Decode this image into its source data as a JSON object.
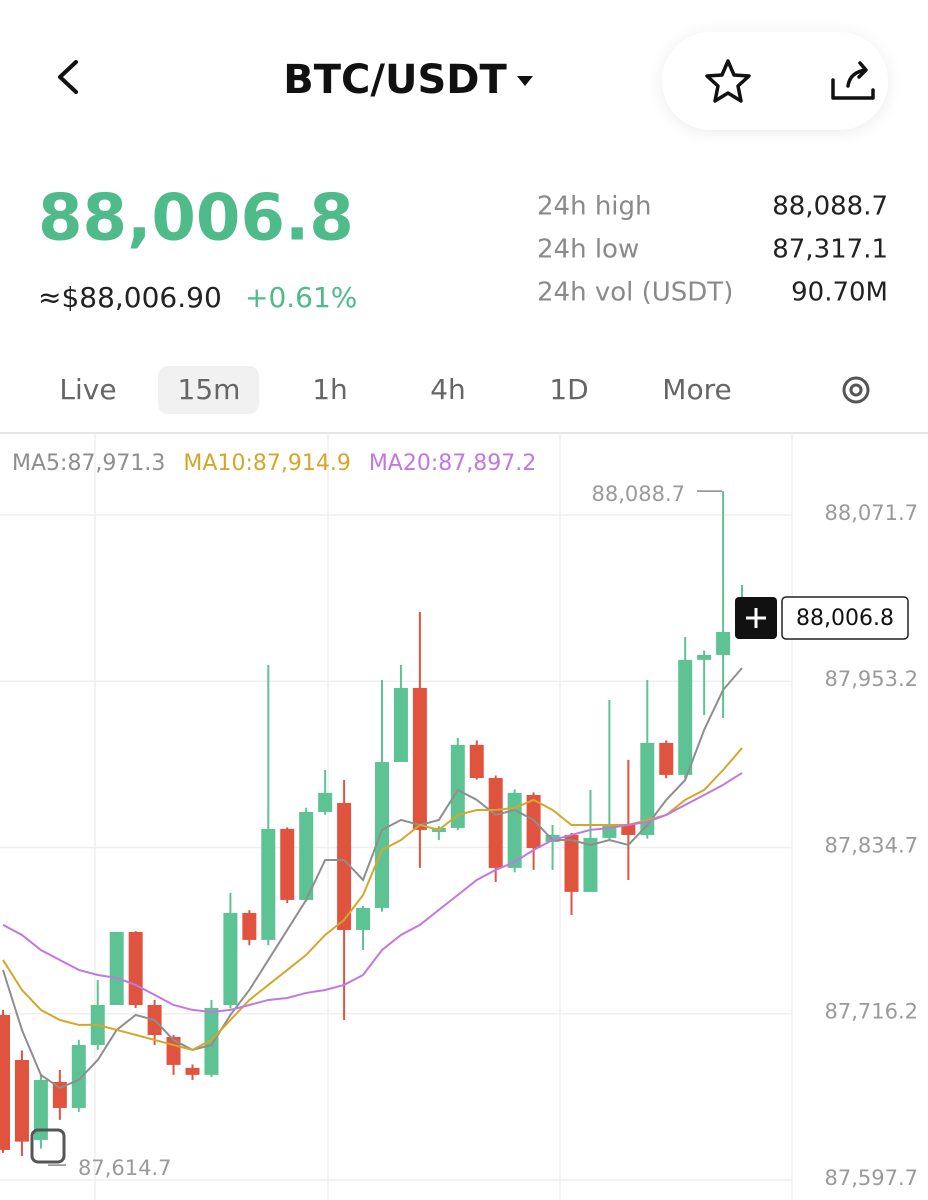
{
  "header": {
    "title": "BTC/USDT"
  },
  "ticker": {
    "price": "88,006.8",
    "usd_price": "≈$88,006.90",
    "change": "+0.61%",
    "stats": [
      {
        "label": "24h high",
        "value": "88,088.7"
      },
      {
        "label": "24h low",
        "value": "87,317.1"
      },
      {
        "label": "24h vol (USDT)",
        "value": "90.70M"
      }
    ]
  },
  "tabs": {
    "items": [
      "Live",
      "15m",
      "1h",
      "4h",
      "1D",
      "More"
    ],
    "selected": 1
  },
  "chart_data": {
    "type": "candlestick",
    "up_color": "#5ec394",
    "down_color": "#e0533f",
    "open": [
      87715.3,
      87683.2,
      87626.2,
      87667.6,
      87649.0,
      87693.9,
      87722.4,
      87774.5,
      87722.4,
      87699.6,
      87677.5,
      87672.6,
      87722.4,
      87788.0,
      87768.8,
      87847.9,
      87797.3,
      87860.0,
      87866.4,
      87775.9,
      87791.6,
      87895.6,
      87948.4,
      87845.7,
      87848.6,
      87907.8,
      87884.2,
      87820.1,
      87872.1,
      87838.6,
      87843.6,
      87803.0,
      87841.5,
      87850.7,
      87843.6,
      87909.2,
      87886.4,
      87968.4,
      87971.9,
      87988.3
    ],
    "high": [
      87718.9,
      87690.0,
      87672.6,
      87676.1,
      87697.5,
      87740.2,
      87774.5,
      87775.0,
      87726.0,
      87701.0,
      87680.0,
      87726.0,
      87802.3,
      87790.0,
      87964.8,
      87849.0,
      87863.0,
      87889.9,
      87882.8,
      87793.0,
      87954.1,
      87964.8,
      88002.6,
      87850.0,
      87912.8,
      87911.0,
      87886.0,
      87876.0,
      87874.0,
      87850.7,
      87845.0,
      87875.7,
      87939.8,
      87897.1,
      87954.1,
      87911.0,
      87984.7,
      87975.0,
      88088.7,
      88021.8
    ],
    "low": [
      87617.0,
      87614.7,
      87620.0,
      87640.5,
      87646.2,
      87690.4,
      87722.4,
      87720.3,
      87693.9,
      87672.6,
      87669.0,
      87671.0,
      87720.0,
      87765.0,
      87765.0,
      87795.0,
      87796.0,
      87858.0,
      87711.7,
      87761.6,
      87789.0,
      87895.6,
      87820.1,
      87840.0,
      87847.0,
      87883.0,
      87810.1,
      87817.0,
      87818.7,
      87818.7,
      87786.6,
      87803.0,
      87840.0,
      87811.5,
      87841.0,
      87884.0,
      87884.0,
      87929.1,
      87927.0,
      87986.0
    ],
    "close": [
      87619.1,
      87625.0,
      87669.0,
      87649.0,
      87693.9,
      87722.4,
      87774.5,
      87722.4,
      87701.0,
      87679.7,
      87672.6,
      87720.3,
      87788.0,
      87768.8,
      87847.9,
      87797.3,
      87860.0,
      87873.6,
      87775.9,
      87791.6,
      87895.6,
      87948.4,
      87847.2,
      87848.6,
      87907.8,
      87884.2,
      87820.1,
      87873.6,
      87834.3,
      87843.6,
      87803.0,
      87841.5,
      87850.7,
      87843.6,
      87909.2,
      87886.4,
      87968.4,
      87971.9,
      87988.3,
      88006.8
    ],
    "series": [
      {
        "name": "MA5:87,971.3",
        "color": "#8e8e8e",
        "values": [
          87747.4,
          87704.6,
          87672.5,
          87663.3,
          87669.0,
          87683.2,
          87704.6,
          87715.3,
          87711.7,
          87697.5,
          87690.4,
          87693.9,
          87715.3,
          87733.1,
          87754.5,
          87775.9,
          87797.3,
          87825.8,
          87825.8,
          87811.5,
          87847.2,
          87854.3,
          87850.7,
          87854.3,
          87875.7,
          87868.6,
          87857.9,
          87861.4,
          87854.3,
          87840.0,
          87840.0,
          87836.5,
          87840.0,
          87836.5,
          87850.7,
          87868.6,
          87882.8,
          87918.5,
          87947.0,
          87962.6
        ]
      },
      {
        "name": "MA10:87,914.9",
        "color": "#d4a72c",
        "values": [
          87754.5,
          87733.1,
          87718.9,
          87711.7,
          87708.2,
          87708.2,
          87704.6,
          87701.1,
          87697.5,
          87693.9,
          87690.4,
          87697.5,
          87711.7,
          87726.0,
          87736.7,
          87747.4,
          87758.1,
          87772.3,
          87783.0,
          87800.8,
          87832.9,
          87840.0,
          87850.7,
          87847.2,
          87857.9,
          87861.4,
          87861.4,
          87862.9,
          87868.6,
          87861.4,
          87850.7,
          87850.7,
          87850.7,
          87850.7,
          87854.3,
          87857.9,
          87868.6,
          87875.7,
          87889.9,
          87905.6
        ]
      },
      {
        "name": "MA20:87,897.2",
        "color": "#c178e0",
        "values": [
          87779.5,
          87772.3,
          87761.6,
          87754.5,
          87747.4,
          87743.8,
          87741.7,
          87736.7,
          87729.6,
          87722.4,
          87718.9,
          87717.4,
          87718.9,
          87722.4,
          87726.0,
          87727.4,
          87731.0,
          87733.1,
          87736.7,
          87743.8,
          87761.6,
          87772.3,
          87779.5,
          87790.2,
          87800.8,
          87811.5,
          87818.7,
          87824.4,
          87832.9,
          87840.0,
          87843.6,
          87847.2,
          87848.6,
          87850.7,
          87852.9,
          87857.9,
          87865.0,
          87872.1,
          87879.3,
          87887.8
        ]
      }
    ],
    "ylim": [
      87583.4,
      88128.7
    ],
    "yticks": [
      {
        "value": 88071.7,
        "label": "88,071.7"
      },
      {
        "value": 87953.2,
        "label": "87,953.2"
      },
      {
        "value": 87834.7,
        "label": "87,834.7"
      },
      {
        "value": 87716.2,
        "label": "87,716.2"
      },
      {
        "value": 87597.7,
        "label": "87,597.7"
      }
    ],
    "grid": true,
    "high_marker": {
      "value": 88088.7,
      "label": "88,088.7"
    },
    "low_marker": {
      "value": 87614.7,
      "label": "87,614.7"
    },
    "last_price": {
      "value": 88006.8,
      "label": "88,006.8"
    }
  }
}
